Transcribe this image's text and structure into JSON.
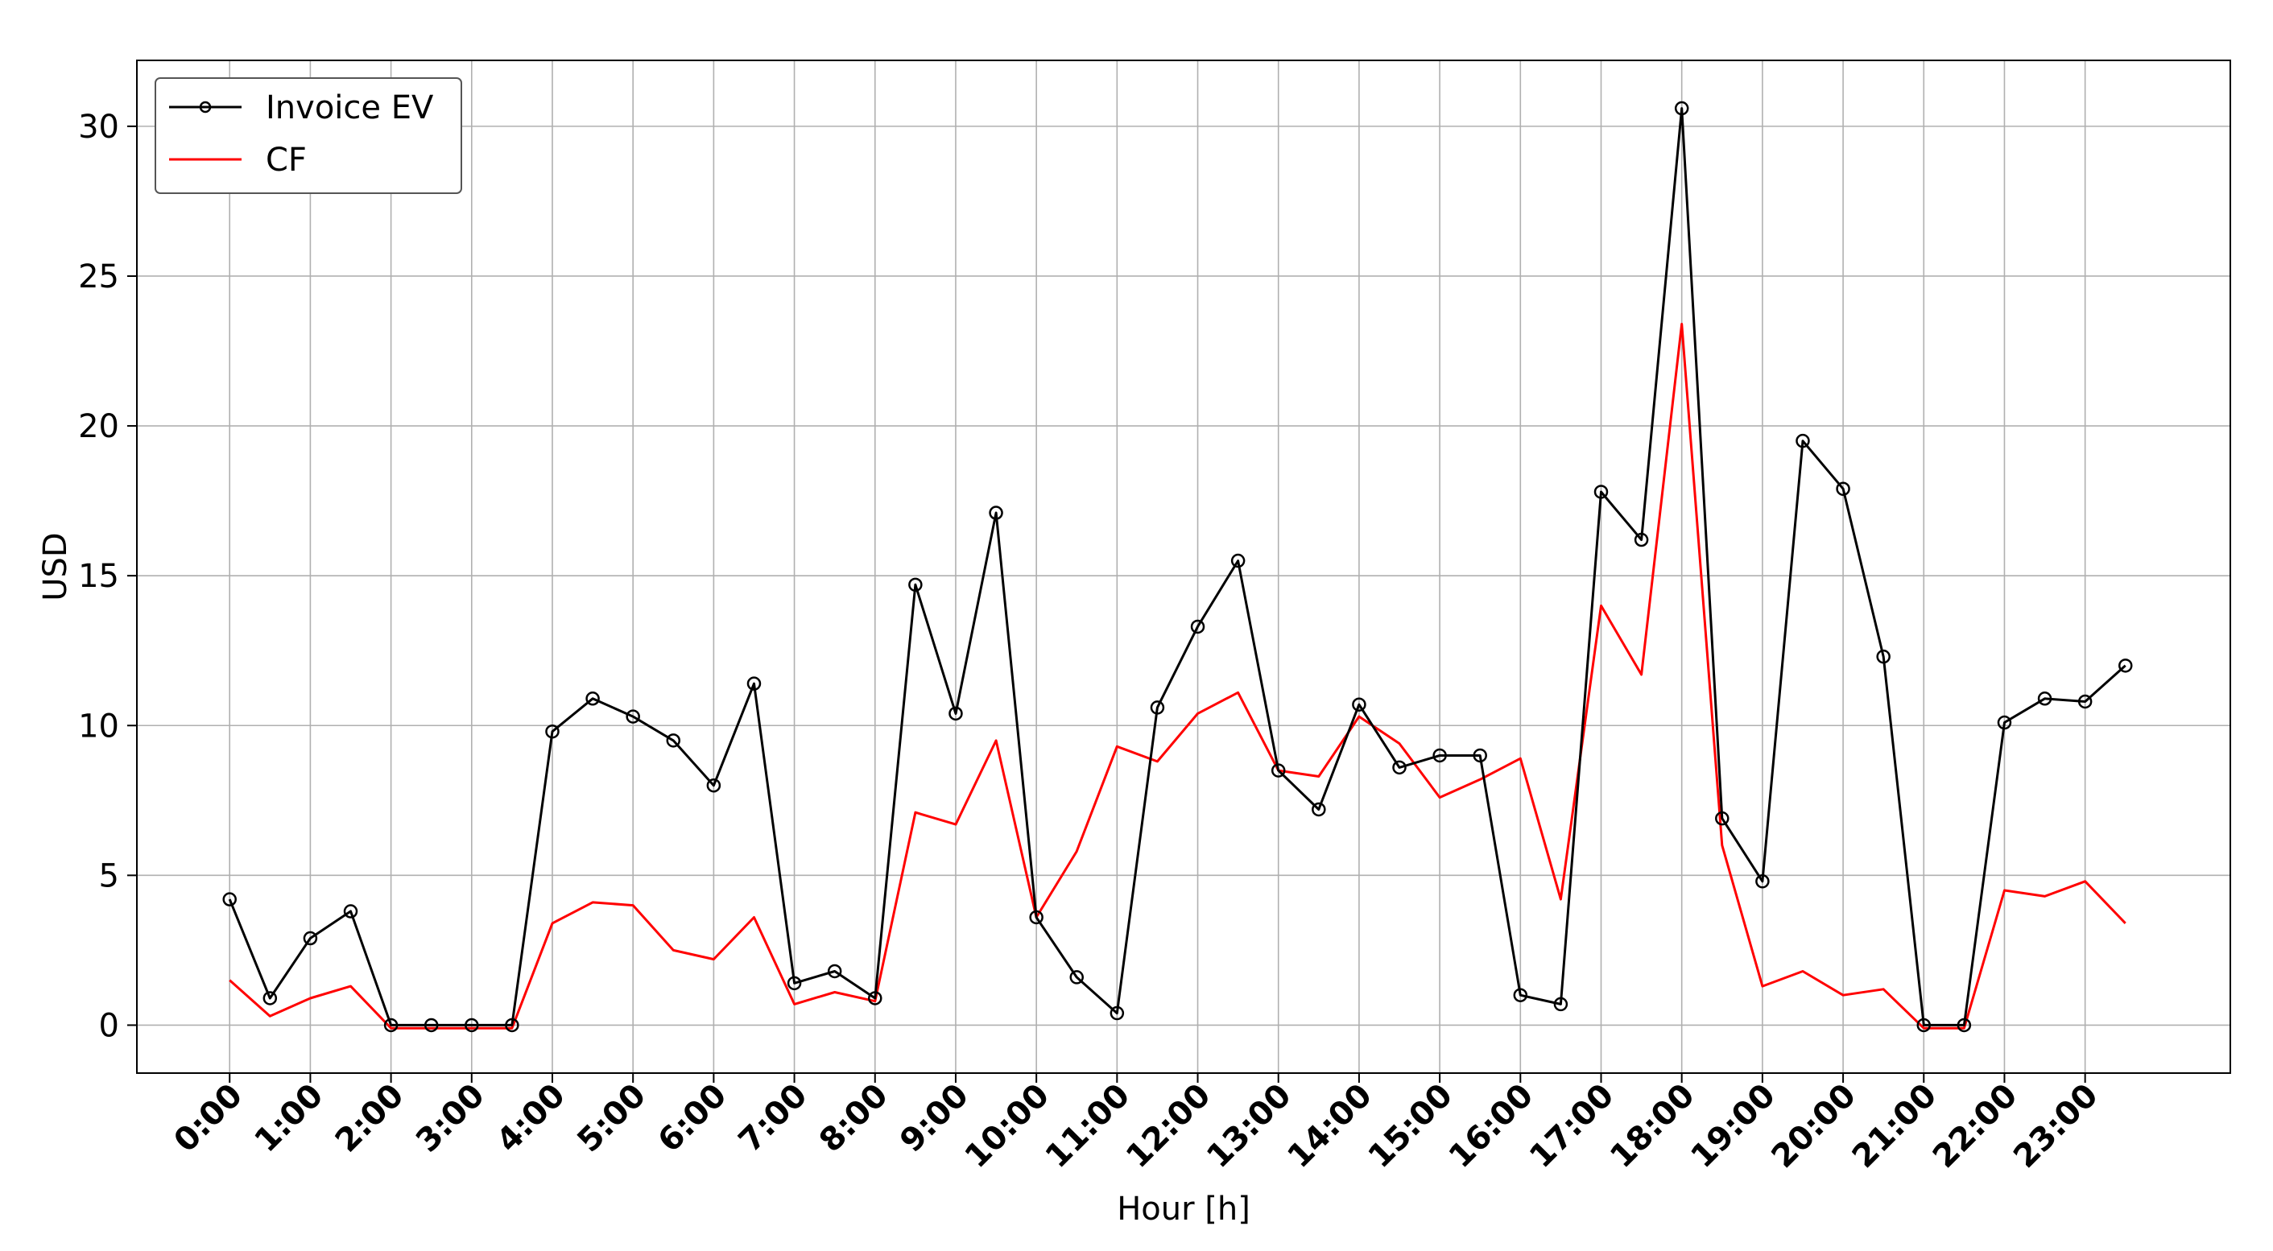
{
  "chart_data": {
    "type": "line",
    "title": "",
    "xlabel": "Hour [h]",
    "ylabel": "USD",
    "ylim": [
      -1.6,
      32.2
    ],
    "xlim": [
      -1.15,
      24.8
    ],
    "yticks": [
      0,
      5,
      10,
      15,
      20,
      25,
      30
    ],
    "xtick_labels": [
      "0:00",
      "1:00",
      "2:00",
      "3:00",
      "4:00",
      "5:00",
      "6:00",
      "7:00",
      "8:00",
      "9:00",
      "10:00",
      "11:00",
      "12:00",
      "13:00",
      "14:00",
      "15:00",
      "16:00",
      "17:00",
      "18:00",
      "19:00",
      "20:00",
      "21:00",
      "22:00",
      "23:00"
    ],
    "grid": true,
    "legend_position": "upper-left",
    "x": [
      0,
      0.5,
      1,
      1.5,
      2,
      2.5,
      3,
      3.5,
      4,
      4.5,
      5,
      5.5,
      6,
      6.5,
      7,
      7.5,
      8,
      8.5,
      9,
      9.5,
      10,
      10.5,
      11,
      11.5,
      12,
      12.5,
      13,
      13.5,
      14,
      14.5,
      15,
      15.5,
      16,
      16.5,
      17,
      17.5,
      18,
      18.5,
      19,
      19.5,
      20,
      20.5,
      21,
      21.5,
      22,
      22.5,
      23,
      23.5
    ],
    "series": [
      {
        "name": "Invoice EV",
        "color": "#000000",
        "marker": "circle",
        "values": [
          4.2,
          0.9,
          2.9,
          3.8,
          0.0,
          0.0,
          0.0,
          0.0,
          9.8,
          10.9,
          10.3,
          9.5,
          8.0,
          11.4,
          1.4,
          1.8,
          0.9,
          14.7,
          10.4,
          17.1,
          3.6,
          1.6,
          0.4,
          10.6,
          13.3,
          15.5,
          8.5,
          7.2,
          10.7,
          8.6,
          9.0,
          9.0,
          1.0,
          0.7,
          17.8,
          16.2,
          30.6,
          6.9,
          4.8,
          19.5,
          17.9,
          12.3,
          0.0,
          0.0,
          10.1,
          10.9,
          10.8,
          12.0
        ]
      },
      {
        "name": "CF",
        "color": "#ff0000",
        "marker": "none",
        "values": [
          1.5,
          0.3,
          0.9,
          1.3,
          -0.1,
          -0.1,
          -0.1,
          -0.1,
          3.4,
          4.1,
          4.0,
          2.5,
          2.2,
          3.6,
          0.7,
          1.1,
          0.8,
          7.1,
          6.7,
          9.5,
          3.6,
          5.8,
          9.3,
          8.8,
          10.4,
          11.1,
          8.5,
          8.3,
          10.3,
          9.4,
          7.6,
          8.2,
          8.9,
          4.2,
          14.0,
          11.7,
          23.4,
          6.0,
          1.3,
          1.8,
          1.0,
          1.2,
          -0.1,
          -0.1,
          4.5,
          4.3,
          4.8,
          3.4
        ]
      }
    ]
  }
}
